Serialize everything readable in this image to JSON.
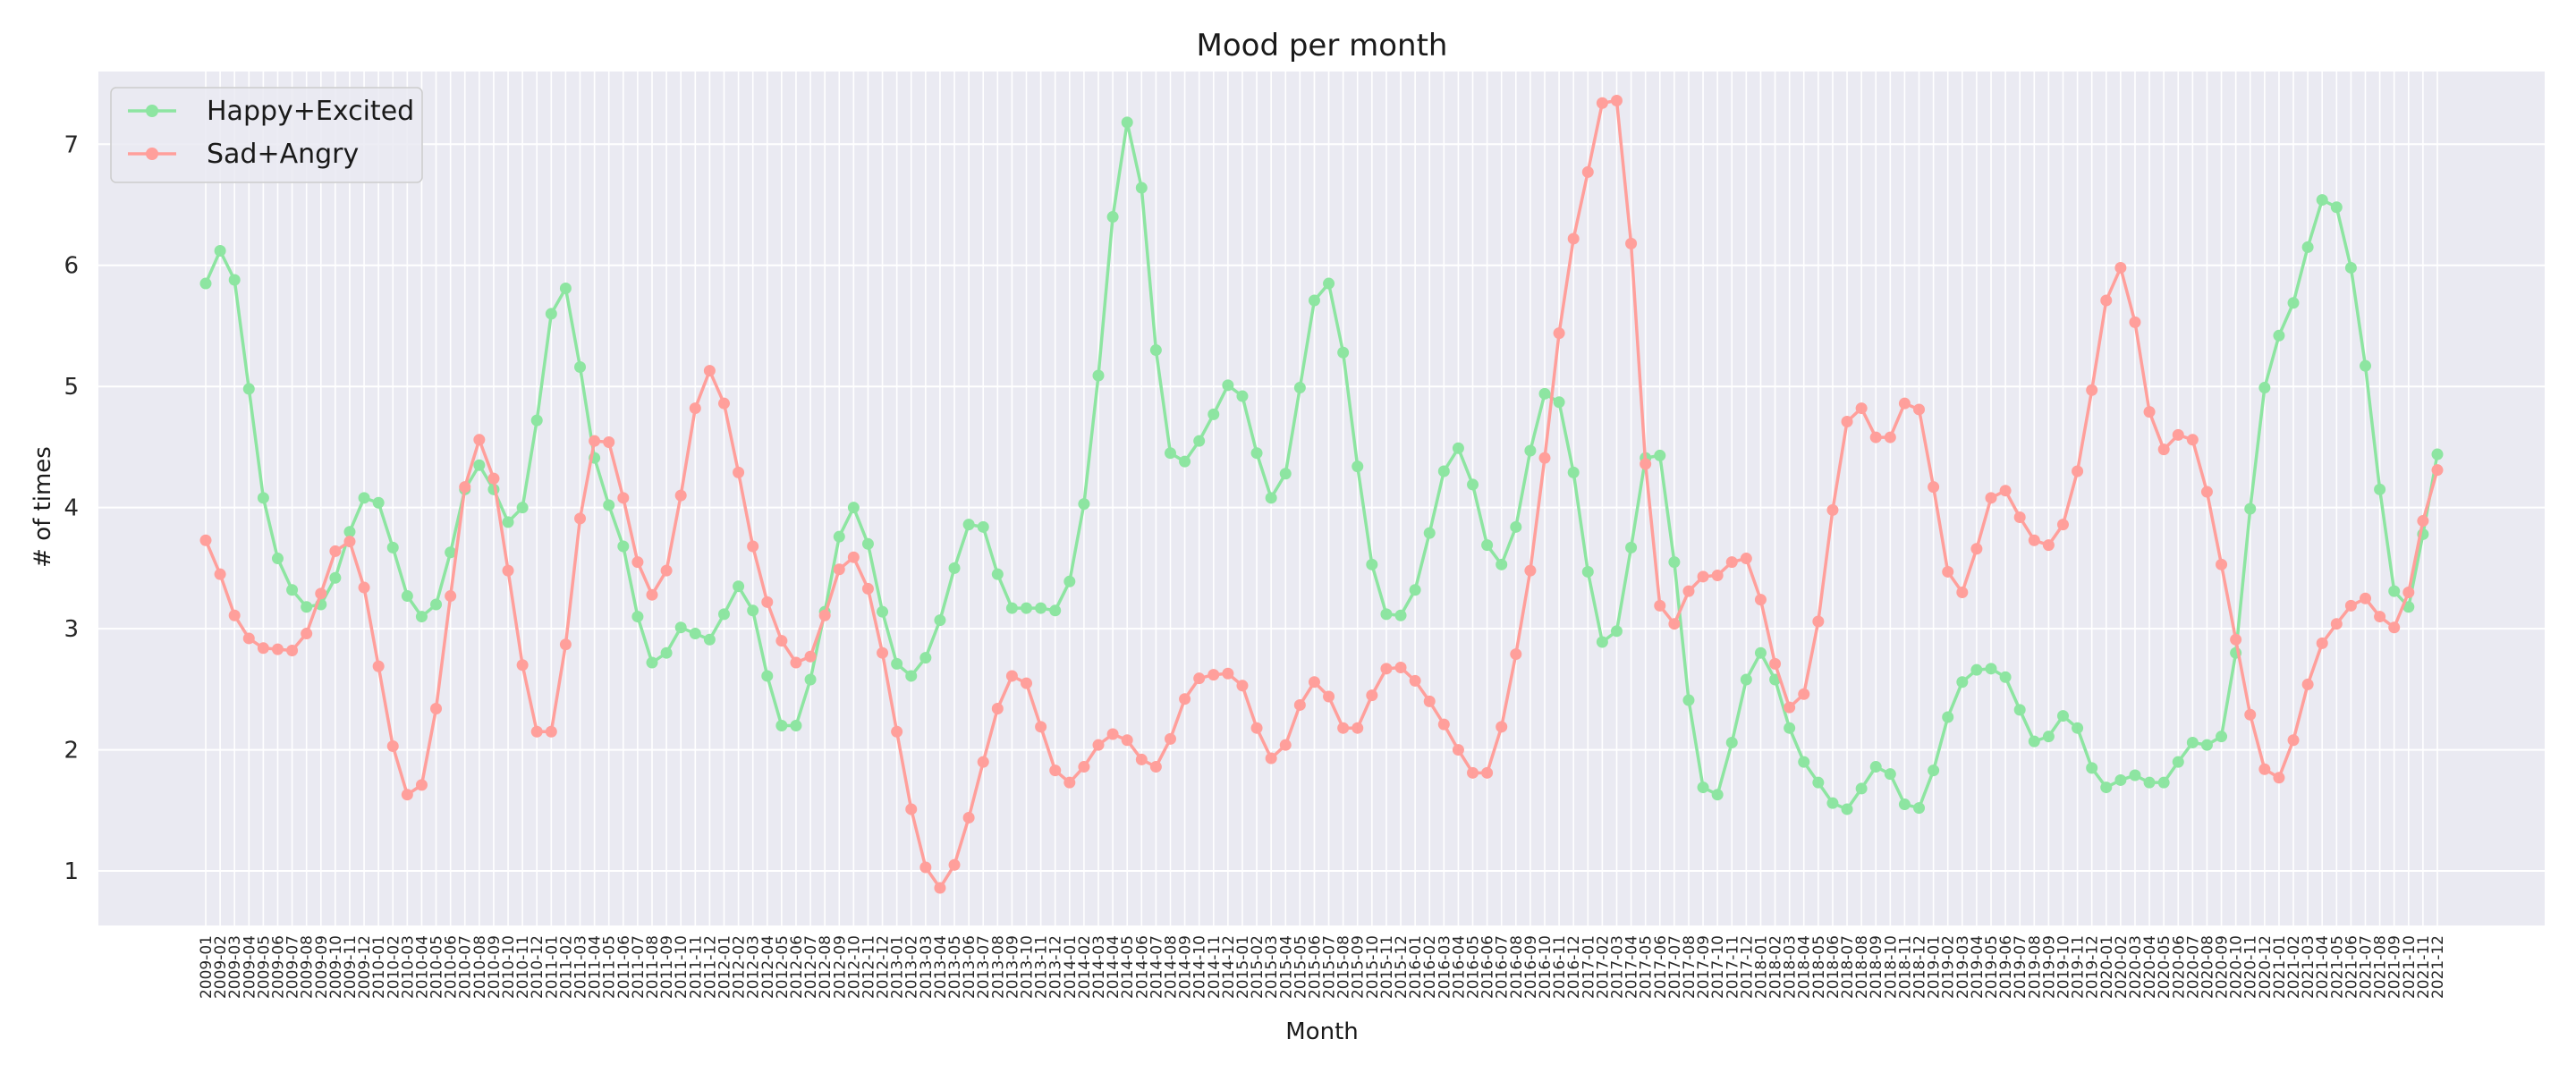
{
  "chart_data": {
    "type": "line",
    "title": "Mood per month",
    "xlabel": "Month",
    "ylabel": "# of times",
    "ylim": [
      0.55,
      7.6
    ],
    "yticks": [
      1,
      2,
      3,
      4,
      5,
      6,
      7
    ],
    "grid": true,
    "legend_position": "top-left",
    "background": "#eaeaf2",
    "x": [
      "2009-01",
      "2009-02",
      "2009-03",
      "2009-04",
      "2009-05",
      "2009-06",
      "2009-07",
      "2009-08",
      "2009-09",
      "2009-10",
      "2009-11",
      "2009-12",
      "2010-01",
      "2010-02",
      "2010-03",
      "2010-04",
      "2010-05",
      "2010-06",
      "2010-07",
      "2010-08",
      "2010-09",
      "2010-10",
      "2010-11",
      "2010-12",
      "2011-01",
      "2011-02",
      "2011-03",
      "2011-04",
      "2011-05",
      "2011-06",
      "2011-07",
      "2011-08",
      "2011-09",
      "2011-10",
      "2011-11",
      "2011-12",
      "2012-01",
      "2012-02",
      "2012-03",
      "2012-04",
      "2012-05",
      "2012-06",
      "2012-07",
      "2012-08",
      "2012-09",
      "2012-10",
      "2012-11",
      "2012-12",
      "2013-01",
      "2013-02",
      "2013-03",
      "2013-04",
      "2013-05",
      "2013-06",
      "2013-07",
      "2013-08",
      "2013-09",
      "2013-10",
      "2013-11",
      "2013-12",
      "2014-01",
      "2014-02",
      "2014-03",
      "2014-04",
      "2014-05",
      "2014-06",
      "2014-07",
      "2014-08",
      "2014-09",
      "2014-10",
      "2014-11",
      "2014-12",
      "2015-01",
      "2015-02",
      "2015-03",
      "2015-04",
      "2015-05",
      "2015-06",
      "2015-07",
      "2015-08",
      "2015-09",
      "2015-10",
      "2015-11",
      "2015-12",
      "2016-01",
      "2016-02",
      "2016-03",
      "2016-04",
      "2016-05",
      "2016-06",
      "2016-07",
      "2016-08",
      "2016-09",
      "2016-10",
      "2016-11",
      "2016-12",
      "2017-01",
      "2017-02",
      "2017-03",
      "2017-04",
      "2017-05",
      "2017-06",
      "2017-07",
      "2017-08",
      "2017-09",
      "2017-10",
      "2017-11",
      "2017-12",
      "2018-01",
      "2018-02",
      "2018-03",
      "2018-04",
      "2018-05",
      "2018-06",
      "2018-07",
      "2018-08",
      "2018-09",
      "2018-10",
      "2018-11",
      "2018-12",
      "2019-01",
      "2019-02",
      "2019-03",
      "2019-04",
      "2019-05",
      "2019-06",
      "2019-07",
      "2019-08",
      "2019-09",
      "2019-10",
      "2019-11",
      "2019-12",
      "2020-01",
      "2020-02",
      "2020-03",
      "2020-04",
      "2020-05",
      "2020-06",
      "2020-07",
      "2020-08",
      "2020-09",
      "2020-10",
      "2020-11",
      "2020-12",
      "2021-01",
      "2021-02",
      "2021-03",
      "2021-04",
      "2021-05",
      "2021-06",
      "2021-07",
      "2021-08",
      "2021-09",
      "2021-10",
      "2021-11",
      "2021-12"
    ],
    "series": [
      {
        "name": "Happy+Excited",
        "color": "#8de5a1",
        "values": [
          5.85,
          6.12,
          5.88,
          4.98,
          4.08,
          3.58,
          3.32,
          3.18,
          3.2,
          3.42,
          3.8,
          4.08,
          4.04,
          3.67,
          3.27,
          3.1,
          3.2,
          3.63,
          4.15,
          4.35,
          4.15,
          3.88,
          4.0,
          4.72,
          5.6,
          5.81,
          5.16,
          4.41,
          4.02,
          3.68,
          3.1,
          2.72,
          2.8,
          3.01,
          2.96,
          2.91,
          3.12,
          3.35,
          3.15,
          2.61,
          2.2,
          2.2,
          2.58,
          3.14,
          3.76,
          4.0,
          3.7,
          3.14,
          2.71,
          2.61,
          2.76,
          3.07,
          3.5,
          3.86,
          3.84,
          3.45,
          3.17,
          3.17,
          3.17,
          3.15,
          3.39,
          4.03,
          5.09,
          6.4,
          7.18,
          6.64,
          5.3,
          4.45,
          4.38,
          4.55,
          4.77,
          5.01,
          4.92,
          4.45,
          4.08,
          4.28,
          4.99,
          5.71,
          5.85,
          5.28,
          4.34,
          3.53,
          3.12,
          3.11,
          3.32,
          3.79,
          4.3,
          4.49,
          4.19,
          3.69,
          3.53,
          3.84,
          4.47,
          4.94,
          4.87,
          4.29,
          3.47,
          2.89,
          2.98,
          3.67,
          4.41,
          4.43,
          3.55,
          2.41,
          1.69,
          1.63,
          2.06,
          2.58,
          2.8,
          2.58,
          2.18,
          1.9,
          1.73,
          1.56,
          1.51,
          1.68,
          1.86,
          1.8,
          1.55,
          1.52,
          1.83,
          2.27,
          2.56,
          2.66,
          2.67,
          2.6,
          2.33,
          2.07,
          2.11,
          2.28,
          2.18,
          1.85,
          1.69,
          1.75,
          1.79,
          1.73,
          1.73,
          1.9,
          2.06,
          2.04,
          2.11,
          2.8,
          3.99,
          4.99,
          5.42,
          5.69,
          6.15,
          6.54,
          6.48,
          5.98,
          5.17,
          4.15,
          3.31,
          3.18,
          3.78,
          4.44
        ]
      },
      {
        "name": "Sad+Angry",
        "color": "#ff9f9b",
        "values": [
          3.73,
          3.45,
          3.11,
          2.92,
          2.84,
          2.83,
          2.82,
          2.96,
          3.29,
          3.64,
          3.72,
          3.34,
          2.69,
          2.03,
          1.63,
          1.71,
          2.34,
          3.27,
          4.17,
          4.56,
          4.24,
          3.48,
          2.7,
          2.15,
          2.15,
          2.87,
          3.91,
          4.55,
          4.54,
          4.08,
          3.55,
          3.28,
          3.48,
          4.1,
          4.82,
          5.13,
          4.86,
          4.29,
          3.68,
          3.22,
          2.9,
          2.72,
          2.77,
          3.11,
          3.49,
          3.59,
          3.33,
          2.8,
          2.15,
          1.51,
          1.03,
          0.86,
          1.05,
          1.44,
          1.9,
          2.34,
          2.61,
          2.55,
          2.19,
          1.83,
          1.73,
          1.86,
          2.04,
          2.13,
          2.08,
          1.92,
          1.86,
          2.09,
          2.42,
          2.59,
          2.62,
          2.63,
          2.53,
          2.18,
          1.93,
          2.04,
          2.37,
          2.56,
          2.44,
          2.18,
          2.18,
          2.45,
          2.67,
          2.68,
          2.57,
          2.4,
          2.21,
          2.0,
          1.81,
          1.81,
          2.19,
          2.79,
          3.48,
          4.41,
          5.44,
          6.22,
          6.77,
          7.34,
          7.36,
          6.18,
          4.36,
          3.19,
          3.04,
          3.31,
          3.43,
          3.44,
          3.55,
          3.58,
          3.24,
          2.71,
          2.35,
          2.46,
          3.06,
          3.98,
          4.71,
          4.82,
          4.58,
          4.58,
          4.86,
          4.81,
          4.17,
          3.47,
          3.3,
          3.66,
          4.08,
          4.14,
          3.92,
          3.73,
          3.69,
          3.86,
          4.3,
          4.97,
          5.71,
          5.98,
          5.53,
          4.79,
          4.48,
          4.6,
          4.56,
          4.13,
          3.53,
          2.91,
          2.29,
          1.84,
          1.77,
          2.08,
          2.54,
          2.88,
          3.04,
          3.19,
          3.25,
          3.1,
          3.01,
          3.3,
          3.89,
          4.31
        ]
      }
    ]
  }
}
